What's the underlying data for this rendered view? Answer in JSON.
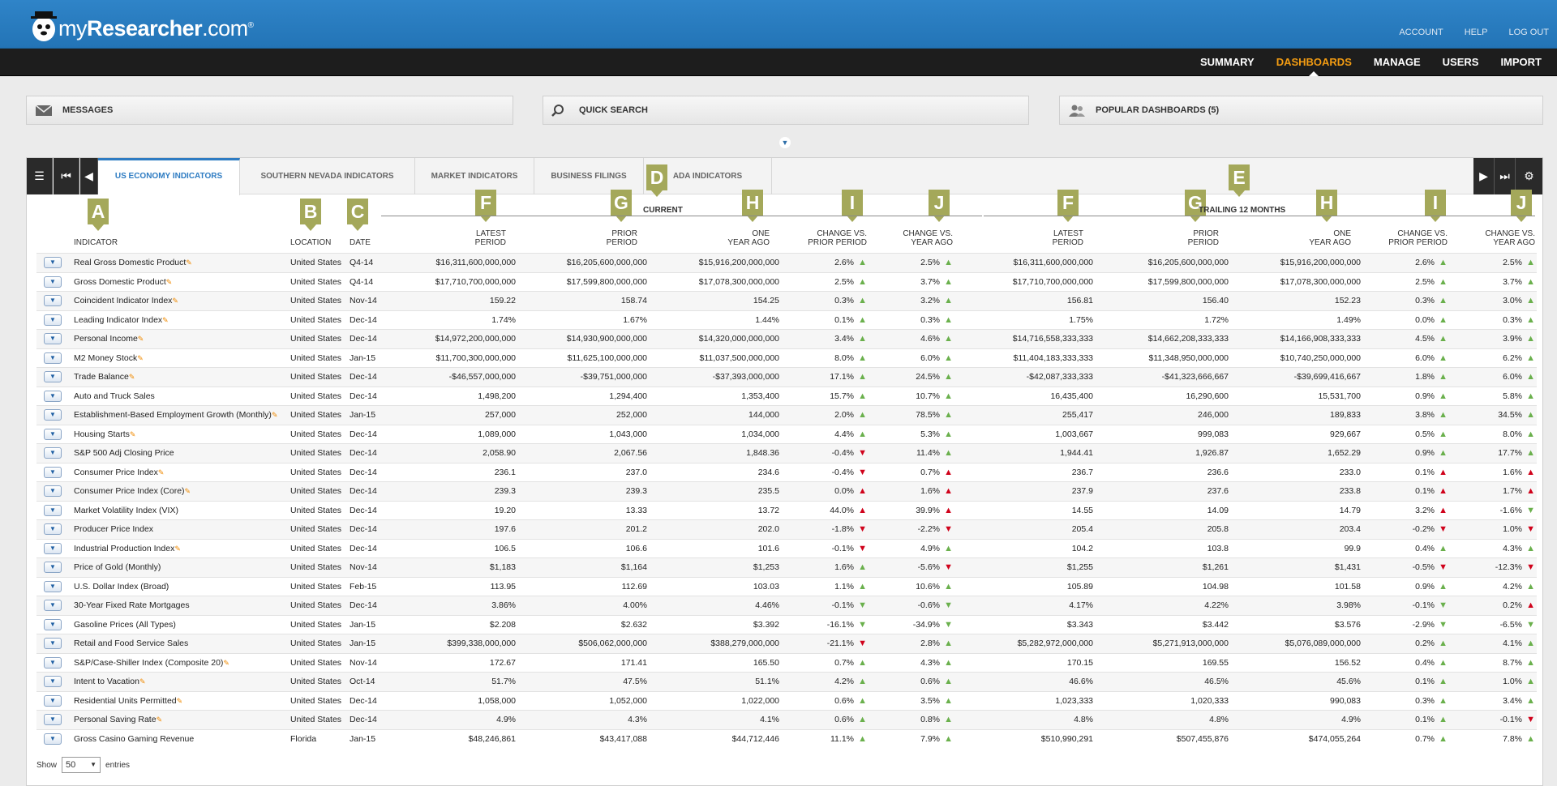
{
  "app": {
    "brand_prefix": "my",
    "brand_bold": "Researcher",
    "brand_suffix": ".com",
    "reg": "®"
  },
  "toplinks": [
    "ACCOUNT",
    "HELP",
    "LOG OUT"
  ],
  "nav": [
    "SUMMARY",
    "DASHBOARDS",
    "MANAGE",
    "USERS",
    "IMPORT"
  ],
  "nav_active": "DASHBOARDS",
  "panels": {
    "messages": "MESSAGES",
    "quick_search": "QUICK SEARCH",
    "popular": "POPULAR DASHBOARDS (5)"
  },
  "tabs": [
    "US ECONOMY INDICATORS",
    "SOUTHERN NEVADA INDICATORS",
    "MARKET INDICATORS",
    "BUSINESS FILINGS",
    "ADA INDICATORS"
  ],
  "active_tab": "US ECONOMY INDICATORS",
  "callouts": {
    "A": "A",
    "B": "B",
    "C": "C",
    "D": "D",
    "E": "E",
    "F": "F",
    "G": "G",
    "H": "H",
    "I": "I",
    "J": "J"
  },
  "groups": {
    "current": "CURRENT",
    "trailing": "TRAILING 12 MONTHS"
  },
  "headers": {
    "indicator": "INDICATOR",
    "location": "LOCATION",
    "date": "DATE",
    "latest": [
      "LATEST",
      "PERIOD"
    ],
    "prior": [
      "PRIOR",
      "PERIOD"
    ],
    "one_year": [
      "ONE",
      "YEAR AGO"
    ],
    "chg_prior": [
      "CHANGE VS.",
      "PRIOR PERIOD"
    ],
    "chg_year": [
      "CHANGE VS.",
      "YEAR AGO"
    ]
  },
  "rows": [
    [
      "Real Gross Domestic Product",
      "United States",
      "Q4-14",
      "$16,311,600,000,000",
      "$16,205,600,000,000",
      "$15,916,200,000,000",
      "2.6%",
      "up",
      "2.5%",
      "up",
      "$16,311,600,000,000",
      "$16,205,600,000,000",
      "$15,916,200,000,000",
      "2.6%",
      "up",
      "2.5%",
      "up",
      true
    ],
    [
      "Gross Domestic Product",
      "United States",
      "Q4-14",
      "$17,710,700,000,000",
      "$17,599,800,000,000",
      "$17,078,300,000,000",
      "2.5%",
      "up",
      "3.7%",
      "up",
      "$17,710,700,000,000",
      "$17,599,800,000,000",
      "$17,078,300,000,000",
      "2.5%",
      "up",
      "3.7%",
      "up",
      true
    ],
    [
      "Coincident Indicator Index",
      "United States",
      "Nov-14",
      "159.22",
      "158.74",
      "154.25",
      "0.3%",
      "up",
      "3.2%",
      "up",
      "156.81",
      "156.40",
      "152.23",
      "0.3%",
      "up",
      "3.0%",
      "up",
      true
    ],
    [
      "Leading Indicator Index",
      "United States",
      "Dec-14",
      "1.74%",
      "1.67%",
      "1.44%",
      "0.1%",
      "up",
      "0.3%",
      "up",
      "1.75%",
      "1.72%",
      "1.49%",
      "0.0%",
      "up",
      "0.3%",
      "up",
      true
    ],
    [
      "Personal Income",
      "United States",
      "Dec-14",
      "$14,972,200,000,000",
      "$14,930,900,000,000",
      "$14,320,000,000,000",
      "3.4%",
      "up",
      "4.6%",
      "up",
      "$14,716,558,333,333",
      "$14,662,208,333,333",
      "$14,166,908,333,333",
      "4.5%",
      "up",
      "3.9%",
      "up",
      true
    ],
    [
      "M2 Money Stock",
      "United States",
      "Jan-15",
      "$11,700,300,000,000",
      "$11,625,100,000,000",
      "$11,037,500,000,000",
      "8.0%",
      "up",
      "6.0%",
      "up",
      "$11,404,183,333,333",
      "$11,348,950,000,000",
      "$10,740,250,000,000",
      "6.0%",
      "up",
      "6.2%",
      "up",
      true
    ],
    [
      "Trade Balance",
      "United States",
      "Dec-14",
      "-$46,557,000,000",
      "-$39,751,000,000",
      "-$37,393,000,000",
      "17.1%",
      "up",
      "24.5%",
      "up",
      "-$42,087,333,333",
      "-$41,323,666,667",
      "-$39,699,416,667",
      "1.8%",
      "up",
      "6.0%",
      "up",
      true
    ],
    [
      "Auto and Truck Sales",
      "United States",
      "Dec-14",
      "1,498,200",
      "1,294,400",
      "1,353,400",
      "15.7%",
      "up",
      "10.7%",
      "up",
      "16,435,400",
      "16,290,600",
      "15,531,700",
      "0.9%",
      "up",
      "5.8%",
      "up",
      false
    ],
    [
      "Establishment-Based Employment Growth (Monthly)",
      "United States",
      "Jan-15",
      "257,000",
      "252,000",
      "144,000",
      "2.0%",
      "up",
      "78.5%",
      "up",
      "255,417",
      "246,000",
      "189,833",
      "3.8%",
      "up",
      "34.5%",
      "up",
      true
    ],
    [
      "Housing Starts",
      "United States",
      "Dec-14",
      "1,089,000",
      "1,043,000",
      "1,034,000",
      "4.4%",
      "up",
      "5.3%",
      "up",
      "1,003,667",
      "999,083",
      "929,667",
      "0.5%",
      "up",
      "8.0%",
      "up",
      true
    ],
    [
      "S&P 500 Adj Closing Price",
      "United States",
      "Dec-14",
      "2,058.90",
      "2,067.56",
      "1,848.36",
      "-0.4%",
      "dn",
      "11.4%",
      "up",
      "1,944.41",
      "1,926.87",
      "1,652.29",
      "0.9%",
      "up",
      "17.7%",
      "up",
      false
    ],
    [
      "Consumer Price Index",
      "United States",
      "Dec-14",
      "236.1",
      "237.0",
      "234.6",
      "-0.4%",
      "dn",
      "0.7%",
      "ru",
      "236.7",
      "236.6",
      "233.0",
      "0.1%",
      "ru",
      "1.6%",
      "ru",
      true
    ],
    [
      "Consumer Price Index (Core)",
      "United States",
      "Dec-14",
      "239.3",
      "239.3",
      "235.5",
      "0.0%",
      "ru",
      "1.6%",
      "ru",
      "237.9",
      "237.6",
      "233.8",
      "0.1%",
      "ru",
      "1.7%",
      "ru",
      true
    ],
    [
      "Market Volatility Index (VIX)",
      "United States",
      "Dec-14",
      "19.20",
      "13.33",
      "13.72",
      "44.0%",
      "ru",
      "39.9%",
      "ru",
      "14.55",
      "14.09",
      "14.79",
      "3.2%",
      "ru",
      "-1.6%",
      "gd",
      false
    ],
    [
      "Producer Price Index",
      "United States",
      "Dec-14",
      "197.6",
      "201.2",
      "202.0",
      "-1.8%",
      "dn",
      "-2.2%",
      "dn",
      "205.4",
      "205.8",
      "203.4",
      "-0.2%",
      "dn",
      "1.0%",
      "dn",
      false
    ],
    [
      "Industrial Production Index",
      "United States",
      "Dec-14",
      "106.5",
      "106.6",
      "101.6",
      "-0.1%",
      "dn",
      "4.9%",
      "up",
      "104.2",
      "103.8",
      "99.9",
      "0.4%",
      "up",
      "4.3%",
      "up",
      true
    ],
    [
      "Price of Gold (Monthly)",
      "United States",
      "Nov-14",
      "$1,183",
      "$1,164",
      "$1,253",
      "1.6%",
      "up",
      "-5.6%",
      "dn",
      "$1,255",
      "$1,261",
      "$1,431",
      "-0.5%",
      "dn",
      "-12.3%",
      "dn",
      false
    ],
    [
      "U.S. Dollar Index (Broad)",
      "United States",
      "Feb-15",
      "113.95",
      "112.69",
      "103.03",
      "1.1%",
      "up",
      "10.6%",
      "up",
      "105.89",
      "104.98",
      "101.58",
      "0.9%",
      "up",
      "4.2%",
      "up",
      false
    ],
    [
      "30-Year Fixed Rate Mortgages",
      "United States",
      "Dec-14",
      "3.86%",
      "4.00%",
      "4.46%",
      "-0.1%",
      "gd",
      "-0.6%",
      "gd",
      "4.17%",
      "4.22%",
      "3.98%",
      "-0.1%",
      "gd",
      "0.2%",
      "ru",
      false
    ],
    [
      "Gasoline Prices (All Types)",
      "United States",
      "Jan-15",
      "$2.208",
      "$2.632",
      "$3.392",
      "-16.1%",
      "gd",
      "-34.9%",
      "gd",
      "$3.343",
      "$3.442",
      "$3.576",
      "-2.9%",
      "gd",
      "-6.5%",
      "gd",
      false
    ],
    [
      "Retail and Food Service Sales",
      "United States",
      "Jan-15",
      "$399,338,000,000",
      "$506,062,000,000",
      "$388,279,000,000",
      "-21.1%",
      "dn",
      "2.8%",
      "up",
      "$5,282,972,000,000",
      "$5,271,913,000,000",
      "$5,076,089,000,000",
      "0.2%",
      "up",
      "4.1%",
      "up",
      false
    ],
    [
      "S&P/Case-Shiller Index (Composite 20)",
      "United States",
      "Nov-14",
      "172.67",
      "171.41",
      "165.50",
      "0.7%",
      "up",
      "4.3%",
      "up",
      "170.15",
      "169.55",
      "156.52",
      "0.4%",
      "up",
      "8.7%",
      "up",
      true
    ],
    [
      "Intent to Vacation",
      "United States",
      "Oct-14",
      "51.7%",
      "47.5%",
      "51.1%",
      "4.2%",
      "up",
      "0.6%",
      "up",
      "46.6%",
      "46.5%",
      "45.6%",
      "0.1%",
      "up",
      "1.0%",
      "up",
      true
    ],
    [
      "Residential Units Permitted",
      "United States",
      "Dec-14",
      "1,058,000",
      "1,052,000",
      "1,022,000",
      "0.6%",
      "up",
      "3.5%",
      "up",
      "1,023,333",
      "1,020,333",
      "990,083",
      "0.3%",
      "up",
      "3.4%",
      "up",
      true
    ],
    [
      "Personal Saving Rate",
      "United States",
      "Dec-14",
      "4.9%",
      "4.3%",
      "4.1%",
      "0.6%",
      "up",
      "0.8%",
      "up",
      "4.8%",
      "4.8%",
      "4.9%",
      "0.1%",
      "up",
      "-0.1%",
      "dn",
      true
    ],
    [
      "Gross Casino Gaming Revenue",
      "Florida",
      "Jan-15",
      "$48,246,861",
      "$43,417,088",
      "$44,712,446",
      "11.1%",
      "up",
      "7.9%",
      "up",
      "$510,990,291",
      "$507,455,876",
      "$474,055,264",
      "0.7%",
      "up",
      "7.8%",
      "up",
      false
    ]
  ],
  "footer": {
    "show": "Show",
    "entries": "entries",
    "page_size": "50"
  },
  "colors": {
    "brand_blue": "#2f84c8",
    "nav_active": "#f39c12",
    "callout": "#a4a85a",
    "up": "#6ab04c",
    "down": "#d0021b"
  }
}
